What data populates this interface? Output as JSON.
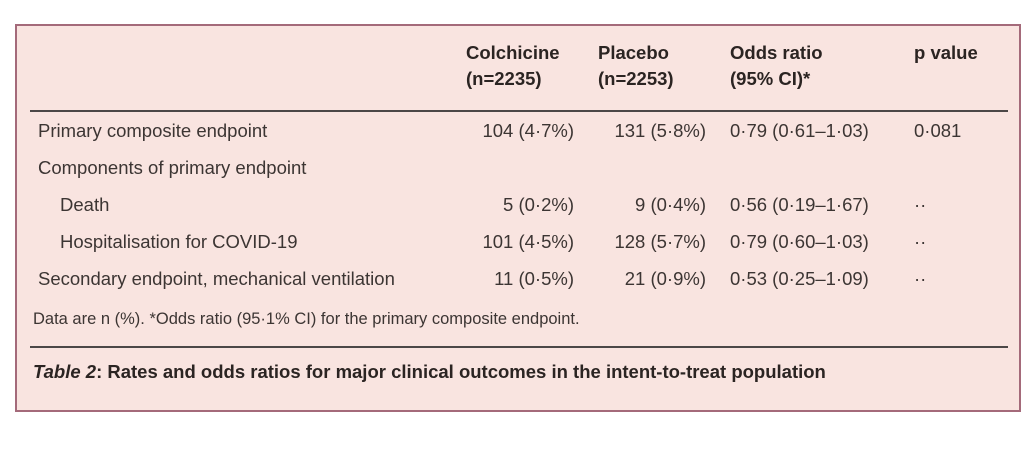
{
  "colors": {
    "card-bg": "#f9e4e0",
    "card-border": "#a46a7a",
    "rule": "#4c4747",
    "text": "#3c3533",
    "text-strong": "#2b2422"
  },
  "table": {
    "header": {
      "colchicine": {
        "line1": "Colchicine",
        "line2": "(n=2235)"
      },
      "placebo": {
        "line1": "Placebo",
        "line2": "(n=2253)"
      },
      "odds_ratio": {
        "line1": "Odds ratio",
        "line2": "(95% CI)*"
      },
      "p_value": "p value"
    },
    "rows": [
      {
        "label": "Primary composite endpoint",
        "colchicine": "104 (4·7%)",
        "placebo": "131 (5·8%)",
        "odds_ratio": "0·79 (0·61–1·03)",
        "p_value": "0·081"
      },
      {
        "label": "Components of primary endpoint",
        "colchicine": "",
        "placebo": "",
        "odds_ratio": "",
        "p_value": ""
      },
      {
        "label": "Death",
        "colchicine": "5 (0·2%)",
        "placebo": "9 (0·4%)",
        "odds_ratio": "0·56 (0·19–1·67)",
        "p_value": "··"
      },
      {
        "label": "Hospitalisation for COVID-19",
        "colchicine": "101 (4·5%)",
        "placebo": "128 (5·7%)",
        "odds_ratio": "0·79 (0·60–1·03)",
        "p_value": "··"
      },
      {
        "label": "Secondary endpoint, mechanical ventilation",
        "colchicine": "11 (0·5%)",
        "placebo": "21 (0·9%)",
        "odds_ratio": "0·53 (0·25–1·09)",
        "p_value": "··"
      }
    ],
    "footnote": "Data are n (%). *Odds ratio (95·1% CI) for the primary composite endpoint.",
    "caption": {
      "label": "Table 2",
      "text": ": Rates and odds ratios for major clinical outcomes in the intent-to-treat population"
    }
  }
}
